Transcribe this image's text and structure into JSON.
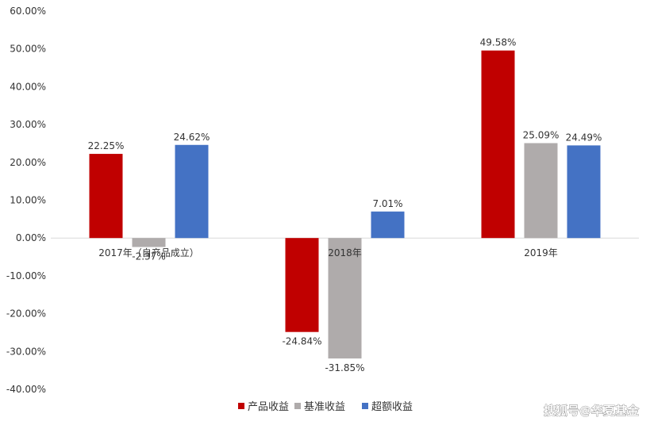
{
  "chart_data": {
    "type": "bar",
    "categories": [
      "2017年（自产品成立）",
      "2018年",
      "2019年"
    ],
    "series": [
      {
        "name": "产品收益",
        "color": "#c00000",
        "values": [
          22.25,
          -24.84,
          49.58
        ],
        "labels": [
          "22.25%",
          "-24.84%",
          "49.58%"
        ]
      },
      {
        "name": "基准收益",
        "color": "#afabab",
        "values": [
          -2.37,
          -31.85,
          25.09
        ],
        "labels": [
          "-2.37%",
          "-31.85%",
          "25.09%"
        ]
      },
      {
        "name": "超额收益",
        "color": "#4472c4",
        "values": [
          24.62,
          7.01,
          24.49
        ],
        "labels": [
          "24.62%",
          "7.01%",
          "24.49%"
        ]
      }
    ],
    "yticks": [
      "60.00%",
      "50.00%",
      "40.00%",
      "30.00%",
      "20.00%",
      "10.00%",
      "0.00%",
      "-10.00%",
      "-20.00%",
      "-30.00%",
      "-40.00%"
    ],
    "ylim": [
      -40,
      60
    ],
    "grid": false,
    "legend": "bottom",
    "title": "",
    "xlabel": "",
    "ylabel": ""
  },
  "watermark": "搜狐号@华夏基金"
}
